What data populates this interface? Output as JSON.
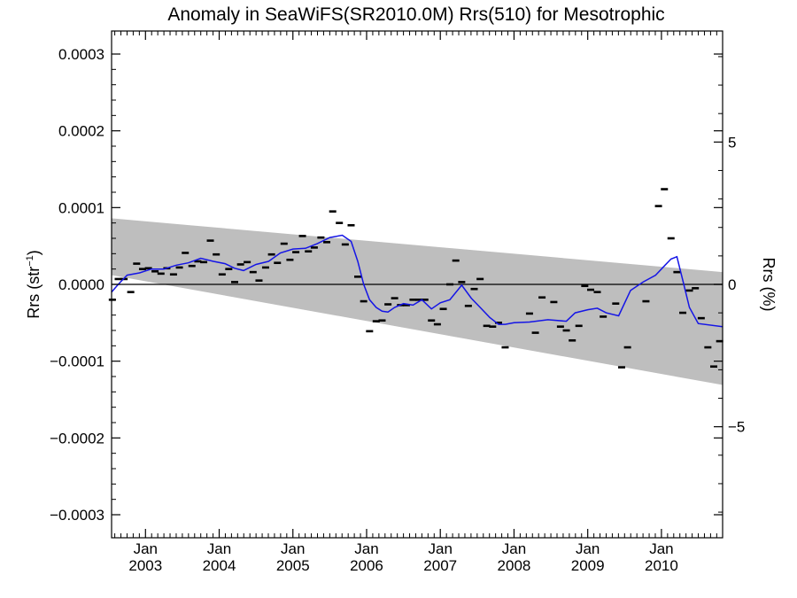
{
  "chart_data": {
    "type": "scatter",
    "title": "Anomaly in SeaWiFS(SR2010.0M) Rrs(510) for Mesotrophic",
    "ylabel_left": "Rrs (str",
    "ylabel_left_sup": "−1",
    "ylabel_left_close": ")",
    "ylabel_right": "Rrs (%)",
    "xlim": [
      2002.54,
      2010.83
    ],
    "ylim_left": [
      -0.00033,
      0.00033
    ],
    "ylim_right": [
      -8.9,
      8.9
    ],
    "grid": false,
    "left_ticks": [
      {
        "value": 0.0003,
        "label": "0.0003"
      },
      {
        "value": 0.0002,
        "label": "0.0002"
      },
      {
        "value": 0.0001,
        "label": "0.0001"
      },
      {
        "value": 0.0,
        "label": "0.0000"
      },
      {
        "value": -0.0001,
        "label": "−0.0001"
      },
      {
        "value": -0.0002,
        "label": "−0.0002"
      },
      {
        "value": -0.0003,
        "label": "−0.0003"
      }
    ],
    "right_ticks": [
      {
        "value": 5,
        "label": "5"
      },
      {
        "value": 0,
        "label": "0"
      },
      {
        "value": -5,
        "label": "−5"
      }
    ],
    "x_ticks": [
      {
        "value": 2003.0,
        "label": "Jan",
        "label2": "2003"
      },
      {
        "value": 2004.0,
        "label": "Jan",
        "label2": "2004"
      },
      {
        "value": 2005.0,
        "label": "Jan",
        "label2": "2005"
      },
      {
        "value": 2006.0,
        "label": "Jan",
        "label2": "2006"
      },
      {
        "value": 2007.0,
        "label": "Jan",
        "label2": "2007"
      },
      {
        "value": 2008.0,
        "label": "Jan",
        "label2": "2008"
      },
      {
        "value": 2009.0,
        "label": "Jan",
        "label2": "2009"
      },
      {
        "value": 2010.0,
        "label": "Jan",
        "label2": "2010"
      }
    ],
    "uncertainty_band": {
      "color": "#bebebe",
      "upper": [
        [
          2002.54,
          8.6e-05
        ],
        [
          2010.83,
          1.6e-05
        ]
      ],
      "lower": [
        [
          2002.54,
          1.2e-05
        ],
        [
          2010.83,
          -0.000131
        ]
      ]
    },
    "zero_line": 0,
    "series": [
      {
        "kind": "monthly_anomaly_markers",
        "color": "#000000",
        "points": [
          [
            2002.55,
            -2e-05
          ],
          [
            2002.63,
            7e-06
          ],
          [
            2002.71,
            7e-06
          ],
          [
            2002.8,
            -1e-05
          ],
          [
            2002.88,
            2.7e-05
          ],
          [
            2002.96,
            2e-05
          ],
          [
            2003.04,
            2.1e-05
          ],
          [
            2003.13,
            1.7e-05
          ],
          [
            2003.21,
            1.4e-05
          ],
          [
            2003.29,
            2.1e-05
          ],
          [
            2003.38,
            1.3e-05
          ],
          [
            2003.46,
            2.2e-05
          ],
          [
            2003.54,
            4.1e-05
          ],
          [
            2003.63,
            2.4e-05
          ],
          [
            2003.71,
            3e-05
          ],
          [
            2003.79,
            2.9e-05
          ],
          [
            2003.88,
            5.7e-05
          ],
          [
            2003.96,
            3.9e-05
          ],
          [
            2004.04,
            1.3e-05
          ],
          [
            2004.13,
            2e-05
          ],
          [
            2004.21,
            3e-06
          ],
          [
            2004.29,
            2.6e-05
          ],
          [
            2004.38,
            2.9e-05
          ],
          [
            2004.46,
            1.6e-05
          ],
          [
            2004.54,
            5e-06
          ],
          [
            2004.63,
            2.2e-05
          ],
          [
            2004.71,
            3.9e-05
          ],
          [
            2004.79,
            2.8e-05
          ],
          [
            2004.88,
            5.3e-05
          ],
          [
            2004.96,
            3.2e-05
          ],
          [
            2005.04,
            4.2e-05
          ],
          [
            2005.13,
            6.3e-05
          ],
          [
            2005.21,
            4.3e-05
          ],
          [
            2005.29,
            4.8e-05
          ],
          [
            2005.38,
            6.1e-05
          ],
          [
            2005.46,
            5.5e-05
          ],
          [
            2005.54,
            9.5e-05
          ],
          [
            2005.63,
            8e-05
          ],
          [
            2005.71,
            5.2e-05
          ],
          [
            2005.79,
            7.7e-05
          ],
          [
            2005.88,
            1e-05
          ],
          [
            2005.96,
            -2.2e-05
          ],
          [
            2006.04,
            -6.1e-05
          ],
          [
            2006.13,
            -4.8e-05
          ],
          [
            2006.21,
            -4.7e-05
          ],
          [
            2006.29,
            -2.6e-05
          ],
          [
            2006.38,
            -1.8e-05
          ],
          [
            2006.46,
            -2.7e-05
          ],
          [
            2006.54,
            -2.7e-05
          ],
          [
            2006.63,
            -2e-05
          ],
          [
            2006.71,
            -2e-05
          ],
          [
            2006.79,
            -2e-05
          ],
          [
            2006.88,
            -4.7e-05
          ],
          [
            2006.96,
            -5.2e-05
          ],
          [
            2007.04,
            -3.2e-05
          ],
          [
            2007.13,
            0.0
          ],
          [
            2007.21,
            3.1e-05
          ],
          [
            2007.29,
            3e-06
          ],
          [
            2007.38,
            -2.8e-05
          ],
          [
            2007.46,
            -6e-06
          ],
          [
            2007.54,
            7e-06
          ],
          [
            2007.63,
            -5.4e-05
          ],
          [
            2007.71,
            -5.5e-05
          ],
          [
            2007.79,
            -5e-05
          ],
          [
            2007.88,
            -8.2e-05
          ],
          [
            2008.21,
            -3.8e-05
          ],
          [
            2008.29,
            -6.3e-05
          ],
          [
            2008.38,
            -1.7e-05
          ],
          [
            2008.54,
            -2.3e-05
          ],
          [
            2008.63,
            -5.5e-05
          ],
          [
            2008.71,
            -6e-05
          ],
          [
            2008.79,
            -7.3e-05
          ],
          [
            2008.88,
            -5.4e-05
          ],
          [
            2008.96,
            -2e-06
          ],
          [
            2009.04,
            -7e-06
          ],
          [
            2009.13,
            -1e-05
          ],
          [
            2009.21,
            -4.2e-05
          ],
          [
            2009.38,
            -2.5e-05
          ],
          [
            2009.46,
            -0.000108
          ],
          [
            2009.54,
            -8.2e-05
          ],
          [
            2009.79,
            -2.2e-05
          ],
          [
            2009.96,
            0.000102
          ],
          [
            2010.04,
            0.000124
          ],
          [
            2010.13,
            6e-05
          ],
          [
            2010.21,
            1.6e-05
          ],
          [
            2010.29,
            -3.7e-05
          ],
          [
            2010.38,
            -8e-06
          ],
          [
            2010.46,
            -5e-06
          ],
          [
            2010.54,
            -4.4e-05
          ],
          [
            2010.63,
            -8.2e-05
          ],
          [
            2010.71,
            -0.000107
          ],
          [
            2010.79,
            -7.4e-05
          ]
        ]
      },
      {
        "kind": "running_mean",
        "color": "#1515e6",
        "points": [
          [
            2002.54,
            -1e-05
          ],
          [
            2002.63,
            0.0
          ],
          [
            2002.75,
            1.2e-05
          ],
          [
            2002.92,
            1.5e-05
          ],
          [
            2003.08,
            2e-05
          ],
          [
            2003.25,
            2e-05
          ],
          [
            2003.42,
            2.5e-05
          ],
          [
            2003.58,
            2.8e-05
          ],
          [
            2003.75,
            3.4e-05
          ],
          [
            2003.92,
            3e-05
          ],
          [
            2004.08,
            2.7e-05
          ],
          [
            2004.21,
            2.1e-05
          ],
          [
            2004.33,
            1.8e-05
          ],
          [
            2004.5,
            2.6e-05
          ],
          [
            2004.67,
            3e-05
          ],
          [
            2004.83,
            4.1e-05
          ],
          [
            2005.0,
            4.6e-05
          ],
          [
            2005.17,
            4.7e-05
          ],
          [
            2005.33,
            5.3e-05
          ],
          [
            2005.5,
            6.1e-05
          ],
          [
            2005.67,
            6.4e-05
          ],
          [
            2005.79,
            5.6e-05
          ],
          [
            2005.88,
            3e-05
          ],
          [
            2005.96,
            0.0
          ],
          [
            2006.04,
            -2e-05
          ],
          [
            2006.13,
            -3e-05
          ],
          [
            2006.21,
            -3.5e-05
          ],
          [
            2006.29,
            -3.6e-05
          ],
          [
            2006.38,
            -3e-05
          ],
          [
            2006.5,
            -2.5e-05
          ],
          [
            2006.63,
            -2.7e-05
          ],
          [
            2006.75,
            -2e-05
          ],
          [
            2006.88,
            -3.2e-05
          ],
          [
            2007.0,
            -2.4e-05
          ],
          [
            2007.13,
            -2e-05
          ],
          [
            2007.29,
            -1e-06
          ],
          [
            2007.42,
            -1.8e-05
          ],
          [
            2007.54,
            -3e-05
          ],
          [
            2007.67,
            -4.3e-05
          ],
          [
            2007.79,
            -5.2e-05
          ],
          [
            2007.88,
            -5.2e-05
          ],
          [
            2008.0,
            -5e-05
          ],
          [
            2008.21,
            -4.9e-05
          ],
          [
            2008.46,
            -4.6e-05
          ],
          [
            2008.71,
            -4.8e-05
          ],
          [
            2008.83,
            -3.7e-05
          ],
          [
            2009.0,
            -3.3e-05
          ],
          [
            2009.13,
            -3.1e-05
          ],
          [
            2009.25,
            -3.7e-05
          ],
          [
            2009.42,
            -4.1e-05
          ],
          [
            2009.58,
            -8e-06
          ],
          [
            2009.75,
            3e-06
          ],
          [
            2009.92,
            1.2e-05
          ],
          [
            2010.04,
            2.4e-05
          ],
          [
            2010.13,
            3.3e-05
          ],
          [
            2010.21,
            3.6e-05
          ],
          [
            2010.29,
            5e-06
          ],
          [
            2010.38,
            -3e-05
          ],
          [
            2010.5,
            -5.1e-05
          ],
          [
            2010.83,
            -5.5e-05
          ]
        ]
      }
    ]
  }
}
